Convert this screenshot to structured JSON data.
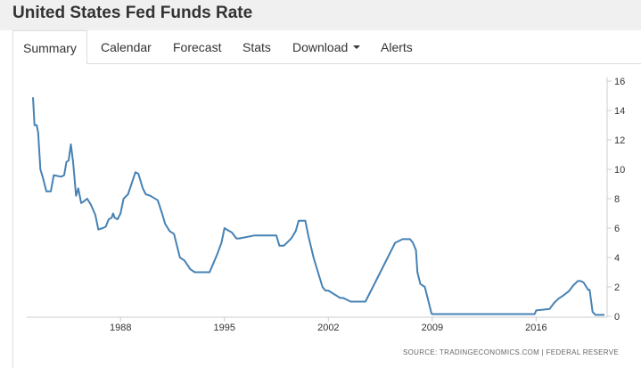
{
  "header": {
    "title": "United States Fed Funds Rate"
  },
  "tabs": [
    {
      "label": "Summary",
      "active": true
    },
    {
      "label": "Calendar",
      "active": false
    },
    {
      "label": "Forecast",
      "active": false
    },
    {
      "label": "Stats",
      "active": false
    },
    {
      "label": "Download",
      "active": false,
      "has_dropdown": true
    },
    {
      "label": "Alerts",
      "active": false
    }
  ],
  "source_text": "SOURCE: TRADINGECONOMICS.COM  |  FEDERAL RESERVE",
  "colors": {
    "line": "#4682b4",
    "axis": "#cccccc",
    "header_bg": "#f0f0f0"
  },
  "chart_data": {
    "type": "line",
    "title": "",
    "xlabel": "",
    "ylabel": "",
    "xlim": [
      1982.1,
      2020.6
    ],
    "ylim": [
      0,
      16
    ],
    "x_ticks": [
      1988,
      1995,
      2002,
      2009,
      2016
    ],
    "y_ticks": [
      0,
      2,
      4,
      6,
      8,
      10,
      12,
      14,
      16
    ],
    "y_axis_position": "right",
    "grid": false,
    "legend": "none",
    "series": [
      {
        "x": [
          1982.1,
          1982.2,
          1982.35,
          1982.45,
          1982.6,
          1982.75,
          1983.0,
          1983.3,
          1983.5,
          1984.0,
          1984.2,
          1984.35,
          1984.5,
          1984.65,
          1984.8,
          1985.0,
          1985.15,
          1985.35,
          1985.5,
          1985.75,
          1986.0,
          1986.3,
          1986.5,
          1986.8,
          1987.0,
          1987.2,
          1987.4,
          1987.5,
          1987.6,
          1987.8,
          1988.0,
          1988.2,
          1988.5,
          1988.8,
          1989.0,
          1989.2,
          1989.35,
          1989.5,
          1989.7,
          1990.0,
          1990.5,
          1990.8,
          1991.0,
          1991.3,
          1991.6,
          1991.8,
          1992.0,
          1992.3,
          1992.7,
          1993.0,
          1994.0,
          1994.5,
          1994.8,
          1995.0,
          1995.15,
          1995.5,
          1995.8,
          1996.0,
          1997.0,
          1997.2,
          1998.5,
          1998.7,
          1999.0,
          1999.5,
          1999.8,
          2000.0,
          2000.2,
          2000.45,
          2000.65,
          2001.0,
          2001.3,
          2001.6,
          2001.8,
          2002.0,
          2002.8,
          2003.0,
          2003.5,
          2004.5,
          2005.0,
          2005.5,
          2006.0,
          2006.5,
          2007.0,
          2007.5,
          2007.7,
          2007.9,
          2008.0,
          2008.2,
          2008.5,
          2008.75,
          2008.95,
          2009.0,
          2015.9,
          2016.0,
          2016.9,
          2017.2,
          2017.5,
          2017.8,
          2018.2,
          2018.5,
          2018.8,
          2019.0,
          2019.2,
          2019.5,
          2019.6,
          2019.8,
          2020.0,
          2020.2,
          2020.6
        ],
        "y": [
          14.9,
          13.0,
          13.0,
          12.5,
          10.0,
          9.5,
          8.5,
          8.5,
          9.6,
          9.5,
          9.6,
          10.5,
          10.6,
          11.7,
          10.5,
          8.2,
          8.7,
          7.7,
          7.8,
          8.0,
          7.6,
          6.9,
          5.9,
          6.0,
          6.1,
          6.6,
          6.7,
          7.0,
          6.7,
          6.6,
          7.0,
          8.0,
          8.3,
          9.2,
          9.8,
          9.7,
          9.2,
          8.7,
          8.3,
          8.2,
          7.9,
          7.0,
          6.3,
          5.8,
          5.6,
          4.8,
          4.0,
          3.8,
          3.2,
          3.0,
          3.0,
          4.2,
          5.0,
          6.0,
          5.9,
          5.7,
          5.3,
          5.3,
          5.5,
          5.5,
          5.5,
          4.8,
          4.8,
          5.3,
          5.8,
          6.5,
          6.5,
          6.5,
          5.5,
          4.0,
          3.0,
          2.0,
          1.75,
          1.75,
          1.25,
          1.25,
          1.0,
          1.0,
          2.0,
          3.0,
          4.0,
          5.0,
          5.25,
          5.25,
          5.0,
          4.5,
          3.0,
          2.2,
          2.0,
          1.0,
          0.2,
          0.15,
          0.15,
          0.4,
          0.5,
          0.9,
          1.2,
          1.4,
          1.7,
          2.1,
          2.4,
          2.4,
          2.3,
          1.8,
          1.8,
          0.3,
          0.1,
          0.1,
          0.1
        ]
      }
    ]
  }
}
